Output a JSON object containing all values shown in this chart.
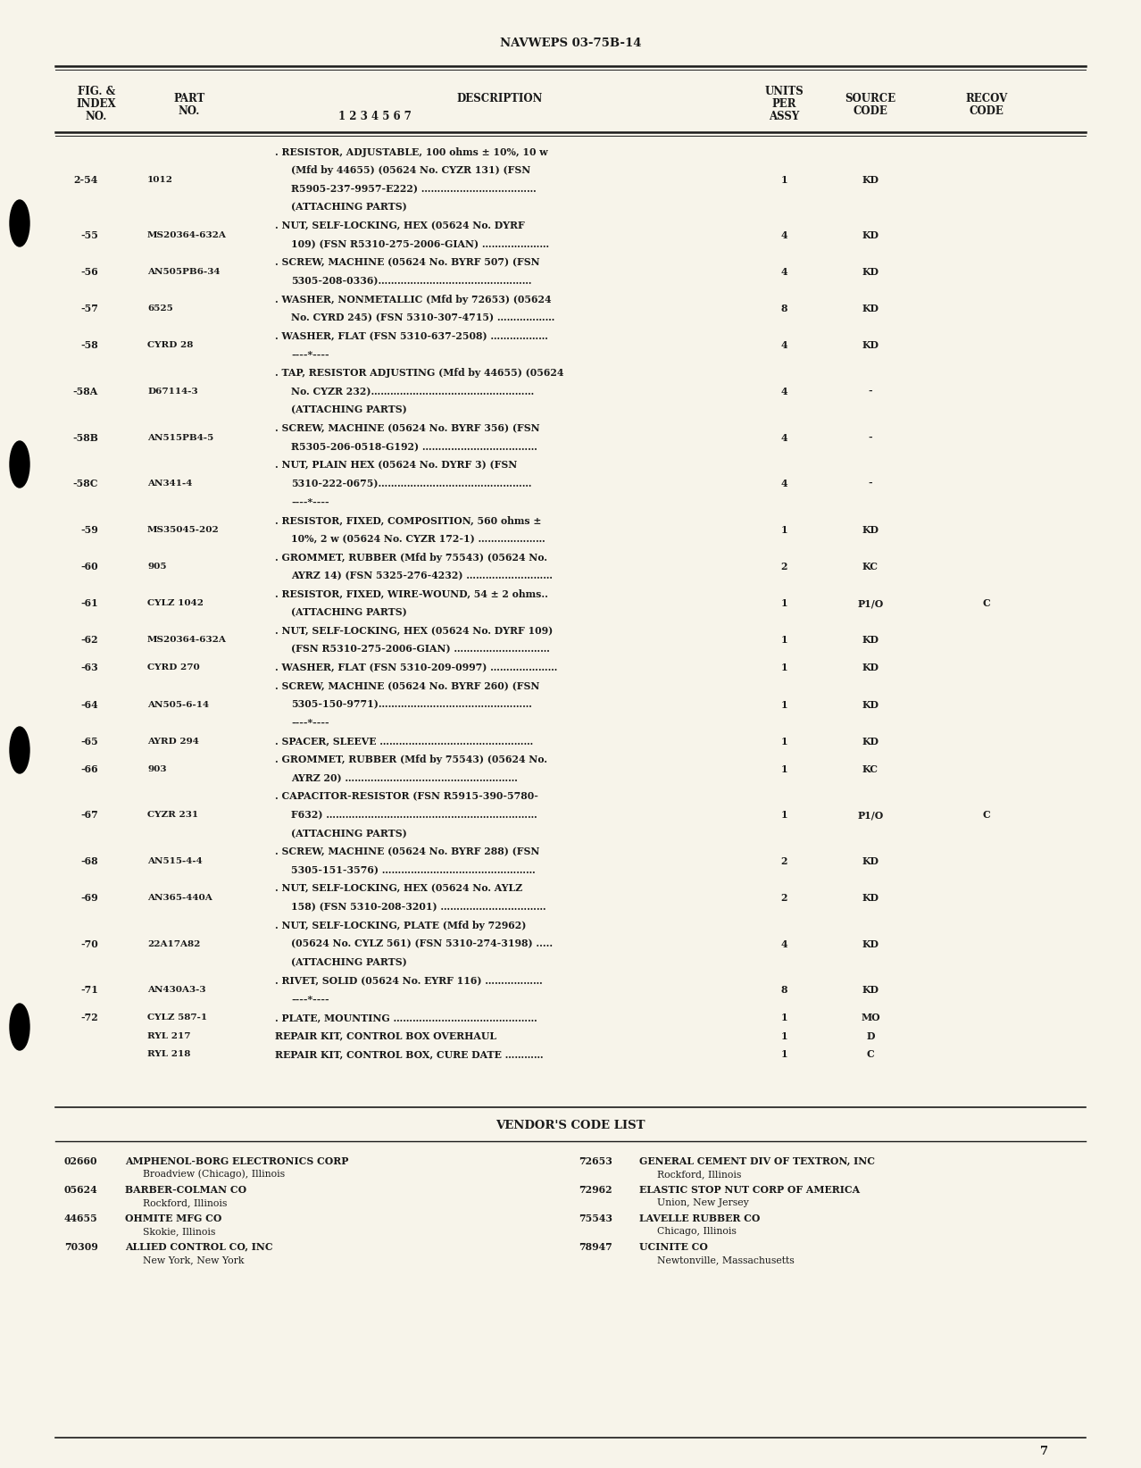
{
  "page_header": "NAVWEPS 03-75B-14",
  "bg_color": "#f7f4ea",
  "text_color": "#1a1a1a",
  "page_number": "7",
  "parts": [
    {
      "fig": "2-54",
      "part": "1012",
      "desc": [
        ". RESISTOR, ADJUSTABLE, 100 ohms ± 10%, 10 w",
        "(Mfd by 44655) (05624 No. CYZR 131) (FSN",
        "R5905-237-9957-E222) ………………………………",
        "(ATTACHING PARTS)"
      ],
      "units": "1",
      "source": "KD",
      "recov": ""
    },
    {
      "fig": "-55",
      "part": "MS20364-632A",
      "desc": [
        ". NUT, SELF-LOCKING, HEX (05624 No. DYRF",
        "109) (FSN R5310-275-2006-GIAN) …………………"
      ],
      "units": "4",
      "source": "KD",
      "recov": ""
    },
    {
      "fig": "-56",
      "part": "AN505PB6-34",
      "desc": [
        ". SCREW, MACHINE (05624 No. BYRF 507) (FSN",
        "5305-208-0336)…………………………………………"
      ],
      "units": "4",
      "source": "KD",
      "recov": ""
    },
    {
      "fig": "-57",
      "part": "6525",
      "desc": [
        ". WASHER, NONMETALLIC (Mfd by 72653) (05624",
        "No. CYRD 245) (FSN 5310-307-4715) ………………"
      ],
      "units": "8",
      "source": "KD",
      "recov": ""
    },
    {
      "fig": "-58",
      "part": "CYRD 28",
      "desc": [
        ". WASHER, FLAT (FSN 5310-637-2508) ………………",
        "----*----"
      ],
      "units": "4",
      "source": "KD",
      "recov": ""
    },
    {
      "fig": "-58A",
      "part": "D67114-3",
      "desc": [
        ". TAP, RESISTOR ADJUSTING (Mfd by 44655) (05624",
        "No. CYZR 232)……………………………………………",
        "(ATTACHING PARTS)"
      ],
      "units": "4",
      "source": "-",
      "recov": ""
    },
    {
      "fig": "-58B",
      "part": "AN515PB4-5",
      "desc": [
        ". SCREW, MACHINE (05624 No. BYRF 356) (FSN",
        "R5305-206-0518-G192) ………………………………"
      ],
      "units": "4",
      "source": "-",
      "recov": ""
    },
    {
      "fig": "-58C",
      "part": "AN341-4",
      "desc": [
        ". NUT, PLAIN HEX (05624 No. DYRF 3) (FSN",
        "5310-222-0675)…………………………………………",
        "----*----"
      ],
      "units": "4",
      "source": "-",
      "recov": ""
    },
    {
      "fig": "-59",
      "part": "MS35045-202",
      "desc": [
        ". RESISTOR, FIXED, COMPOSITION, 560 ohms ±",
        "10%, 2 w (05624 No. CYZR 172-1) …………………"
      ],
      "units": "1",
      "source": "KD",
      "recov": ""
    },
    {
      "fig": "-60",
      "part": "905",
      "desc": [
        ". GROMMET, RUBBER (Mfd by 75543) (05624 No.",
        "AYRZ 14) (FSN 5325-276-4232) ………………………"
      ],
      "units": "2",
      "source": "KC",
      "recov": ""
    },
    {
      "fig": "-61",
      "part": "CYLZ 1042",
      "desc": [
        ". RESISTOR, FIXED, WIRE-WOUND, 54 ± 2 ohms..",
        "(ATTACHING PARTS)"
      ],
      "units": "1",
      "source": "P1/O",
      "recov": "C"
    },
    {
      "fig": "-62",
      "part": "MS20364-632A",
      "desc": [
        ". NUT, SELF-LOCKING, HEX (05624 No. DYRF 109)",
        "(FSN R5310-275-2006-GIAN) …………………………"
      ],
      "units": "1",
      "source": "KD",
      "recov": ""
    },
    {
      "fig": "-63",
      "part": "CYRD 270",
      "desc": [
        ". WASHER, FLAT (FSN 5310-209-0997) …………………"
      ],
      "units": "1",
      "source": "KD",
      "recov": ""
    },
    {
      "fig": "-64",
      "part": "AN505-6-14",
      "desc": [
        ". SCREW, MACHINE (05624 No. BYRF 260) (FSN",
        "5305-150-9771)…………………………………………",
        "----*----"
      ],
      "units": "1",
      "source": "KD",
      "recov": ""
    },
    {
      "fig": "-65",
      "part": "AYRD 294",
      "desc": [
        ". SPACER, SLEEVE …………………………………………"
      ],
      "units": "1",
      "source": "KD",
      "recov": ""
    },
    {
      "fig": "-66",
      "part": "903",
      "desc": [
        ". GROMMET, RUBBER (Mfd by 75543) (05624 No.",
        "AYRZ 20) ………………………………………………"
      ],
      "units": "1",
      "source": "KC",
      "recov": ""
    },
    {
      "fig": "-67",
      "part": "CYZR 231",
      "desc": [
        ". CAPACITOR-RESISTOR (FSN R5915-390-5780-",
        "F632) …………………………………………………………",
        "(ATTACHING PARTS)"
      ],
      "units": "1",
      "source": "P1/O",
      "recov": "C"
    },
    {
      "fig": "-68",
      "part": "AN515-4-4",
      "desc": [
        ". SCREW, MACHINE (05624 No. BYRF 288) (FSN",
        "5305-151-3576) …………………………………………"
      ],
      "units": "2",
      "source": "KD",
      "recov": ""
    },
    {
      "fig": "-69",
      "part": "AN365-440A",
      "desc": [
        ". NUT, SELF-LOCKING, HEX (05624 No. AYLZ",
        "158) (FSN 5310-208-3201) ……………………………"
      ],
      "units": "2",
      "source": "KD",
      "recov": ""
    },
    {
      "fig": "-70",
      "part": "22A17A82",
      "desc": [
        ". NUT, SELF-LOCKING, PLATE (Mfd by 72962)",
        "(05624 No. CYLZ 561) (FSN 5310-274-3198) .....",
        "(ATTACHING PARTS)"
      ],
      "units": "4",
      "source": "KD",
      "recov": ""
    },
    {
      "fig": "-71",
      "part": "AN430A3-3",
      "desc": [
        ". RIVET, SOLID (05624 No. EYRF 116) ………………",
        "----*----"
      ],
      "units": "8",
      "source": "KD",
      "recov": ""
    },
    {
      "fig": "-72",
      "part": "CYLZ 587-1",
      "desc": [
        ". PLATE, MOUNTING ………………………………………"
      ],
      "units": "1",
      "source": "MO",
      "recov": ""
    },
    {
      "fig": "",
      "part": "RYL 217",
      "desc": [
        "REPAIR KIT, CONTROL BOX OVERHAUL"
      ],
      "units": "1",
      "source": "D",
      "recov": ""
    },
    {
      "fig": "",
      "part": "RYL 218",
      "desc": [
        "REPAIR KIT, CONTROL BOX, CURE DATE …………"
      ],
      "units": "1",
      "source": "C",
      "recov": ""
    }
  ],
  "vendor_header": "VENDOR'S CODE LIST",
  "vendors_left": [
    {
      "code": "02660",
      "name": "AMPHENOL-BORG ELECTRONICS CORP",
      "location": "Broadview (Chicago), Illinois"
    },
    {
      "code": "05624",
      "name": "BARBER-COLMAN CO",
      "location": "Rockford, Illinois"
    },
    {
      "code": "44655",
      "name": "OHMITE MFG CO",
      "location": "Skokie, Illinois"
    },
    {
      "code": "70309",
      "name": "ALLIED CONTROL CO, INC",
      "location": "New York, New York"
    }
  ],
  "vendors_right": [
    {
      "code": "72653",
      "name": "GENERAL CEMENT DIV OF TEXTRON, INC",
      "location": "Rockford, Illinois"
    },
    {
      "code": "72962",
      "name": "ELASTIC STOP NUT CORP OF AMERICA",
      "location": "Union, New Jersey"
    },
    {
      "code": "75543",
      "name": "LAVELLE RUBBER CO",
      "location": "Chicago, Illinois"
    },
    {
      "code": "78947",
      "name": "UCINITE CO",
      "location": "Newtonville, Massachusetts"
    }
  ]
}
